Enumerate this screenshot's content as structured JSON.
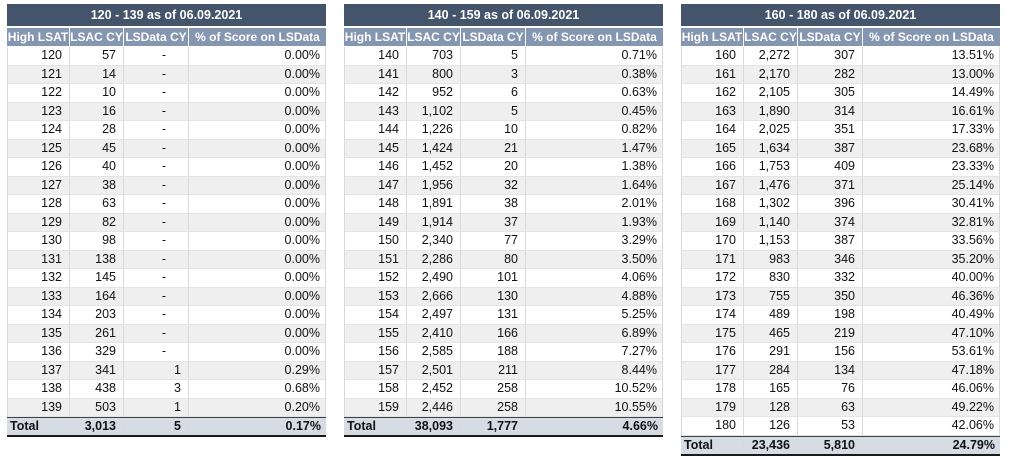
{
  "colors": {
    "title_bg": "#44546A",
    "header_bg": "#8496B0",
    "total_bg": "#D6DCE4",
    "band_bg": "#EFEFEF",
    "grid": "#D9D9D9",
    "header_text": "#FFFFFF",
    "body_text": "#111111"
  },
  "tables": [
    {
      "title": "120 - 139 as of 06.09.2021",
      "headers": [
        "High LSAT",
        "LSAC CY",
        "LSData CY",
        "% of Score on LSData"
      ],
      "rows": [
        [
          "120",
          "57",
          "-",
          "0.00%"
        ],
        [
          "121",
          "14",
          "-",
          "0.00%"
        ],
        [
          "122",
          "10",
          "-",
          "0.00%"
        ],
        [
          "123",
          "16",
          "-",
          "0.00%"
        ],
        [
          "124",
          "28",
          "-",
          "0.00%"
        ],
        [
          "125",
          "45",
          "-",
          "0.00%"
        ],
        [
          "126",
          "40",
          "-",
          "0.00%"
        ],
        [
          "127",
          "38",
          "-",
          "0.00%"
        ],
        [
          "128",
          "63",
          "-",
          "0.00%"
        ],
        [
          "129",
          "82",
          "-",
          "0.00%"
        ],
        [
          "130",
          "98",
          "-",
          "0.00%"
        ],
        [
          "131",
          "138",
          "-",
          "0.00%"
        ],
        [
          "132",
          "145",
          "-",
          "0.00%"
        ],
        [
          "133",
          "164",
          "-",
          "0.00%"
        ],
        [
          "134",
          "203",
          "-",
          "0.00%"
        ],
        [
          "135",
          "261",
          "-",
          "0.00%"
        ],
        [
          "136",
          "329",
          "-",
          "0.00%"
        ],
        [
          "137",
          "341",
          "1",
          "0.29%"
        ],
        [
          "138",
          "438",
          "3",
          "0.68%"
        ],
        [
          "139",
          "503",
          "1",
          "0.20%"
        ]
      ],
      "total": [
        "Total",
        "3,013",
        "5",
        "0.17%"
      ]
    },
    {
      "title": "140 - 159 as of 06.09.2021",
      "headers": [
        "High LSAT",
        "LSAC CY",
        "LSData CY",
        "% of Score on LSData"
      ],
      "rows": [
        [
          "140",
          "703",
          "5",
          "0.71%"
        ],
        [
          "141",
          "800",
          "3",
          "0.38%"
        ],
        [
          "142",
          "952",
          "6",
          "0.63%"
        ],
        [
          "143",
          "1,102",
          "5",
          "0.45%"
        ],
        [
          "144",
          "1,226",
          "10",
          "0.82%"
        ],
        [
          "145",
          "1,424",
          "21",
          "1.47%"
        ],
        [
          "146",
          "1,452",
          "20",
          "1.38%"
        ],
        [
          "147",
          "1,956",
          "32",
          "1.64%"
        ],
        [
          "148",
          "1,891",
          "38",
          "2.01%"
        ],
        [
          "149",
          "1,914",
          "37",
          "1.93%"
        ],
        [
          "150",
          "2,340",
          "77",
          "3.29%"
        ],
        [
          "151",
          "2,286",
          "80",
          "3.50%"
        ],
        [
          "152",
          "2,490",
          "101",
          "4.06%"
        ],
        [
          "153",
          "2,666",
          "130",
          "4.88%"
        ],
        [
          "154",
          "2,497",
          "131",
          "5.25%"
        ],
        [
          "155",
          "2,410",
          "166",
          "6.89%"
        ],
        [
          "156",
          "2,585",
          "188",
          "7.27%"
        ],
        [
          "157",
          "2,501",
          "211",
          "8.44%"
        ],
        [
          "158",
          "2,452",
          "258",
          "10.52%"
        ],
        [
          "159",
          "2,446",
          "258",
          "10.55%"
        ]
      ],
      "total": [
        "Total",
        "38,093",
        "1,777",
        "4.66%"
      ]
    },
    {
      "title": "160 - 180 as of 06.09.2021",
      "headers": [
        "High LSAT",
        "LSAC CY",
        "LSData CY",
        "% of Score on LSData"
      ],
      "rows": [
        [
          "160",
          "2,272",
          "307",
          "13.51%"
        ],
        [
          "161",
          "2,170",
          "282",
          "13.00%"
        ],
        [
          "162",
          "2,105",
          "305",
          "14.49%"
        ],
        [
          "163",
          "1,890",
          "314",
          "16.61%"
        ],
        [
          "164",
          "2,025",
          "351",
          "17.33%"
        ],
        [
          "165",
          "1,634",
          "387",
          "23.68%"
        ],
        [
          "166",
          "1,753",
          "409",
          "23.33%"
        ],
        [
          "167",
          "1,476",
          "371",
          "25.14%"
        ],
        [
          "168",
          "1,302",
          "396",
          "30.41%"
        ],
        [
          "169",
          "1,140",
          "374",
          "32.81%"
        ],
        [
          "170",
          "1,153",
          "387",
          "33.56%"
        ],
        [
          "171",
          "983",
          "346",
          "35.20%"
        ],
        [
          "172",
          "830",
          "332",
          "40.00%"
        ],
        [
          "173",
          "755",
          "350",
          "46.36%"
        ],
        [
          "174",
          "489",
          "198",
          "40.49%"
        ],
        [
          "175",
          "465",
          "219",
          "47.10%"
        ],
        [
          "176",
          "291",
          "156",
          "53.61%"
        ],
        [
          "177",
          "284",
          "134",
          "47.18%"
        ],
        [
          "178",
          "165",
          "76",
          "46.06%"
        ],
        [
          "179",
          "128",
          "63",
          "49.22%"
        ],
        [
          "180",
          "126",
          "53",
          "42.06%"
        ]
      ],
      "total": [
        "Total",
        "23,436",
        "5,810",
        "24.79%"
      ]
    }
  ]
}
